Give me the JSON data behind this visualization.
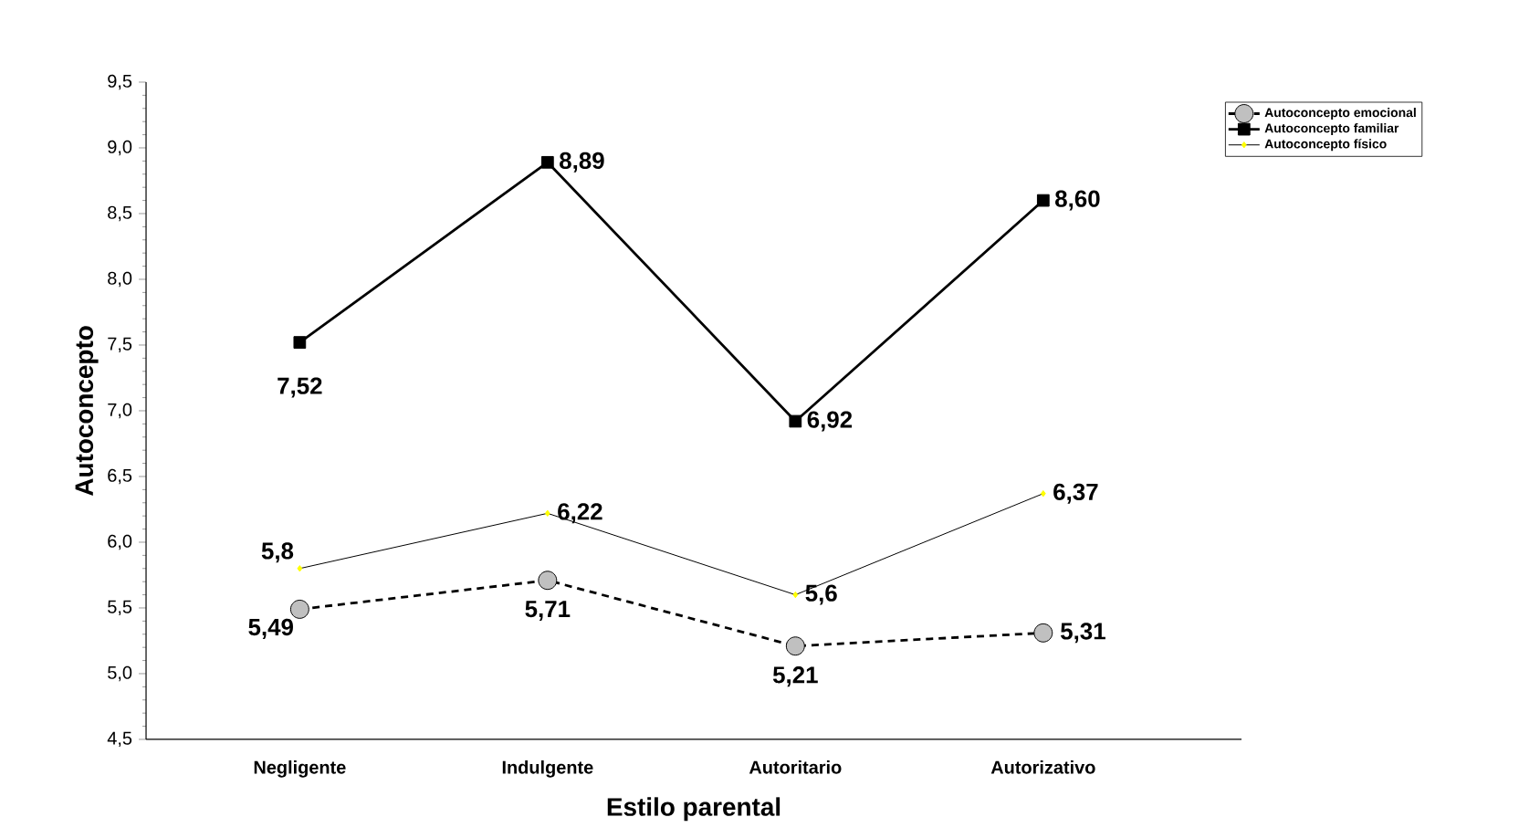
{
  "chart_data": {
    "type": "line",
    "xlabel": "Estilo parental",
    "ylabel": "Autoconcepto",
    "categories": [
      "Negligente",
      "Indulgente",
      "Autoritario",
      "Autorizativo"
    ],
    "ylim": [
      4.5,
      9.5
    ],
    "yticks": [
      {
        "value": 4.5,
        "label": "4,5"
      },
      {
        "value": 5.0,
        "label": "5,0"
      },
      {
        "value": 5.5,
        "label": "5,5"
      },
      {
        "value": 6.0,
        "label": "6,0"
      },
      {
        "value": 6.5,
        "label": "6,5"
      },
      {
        "value": 7.0,
        "label": "7,0"
      },
      {
        "value": 7.5,
        "label": "7,5"
      },
      {
        "value": 8.0,
        "label": "8,0"
      },
      {
        "value": 8.5,
        "label": "8,5"
      },
      {
        "value": 9.0,
        "label": "9,0"
      },
      {
        "value": 9.5,
        "label": "9,5"
      }
    ],
    "grid": false,
    "legend": "top right",
    "series": [
      {
        "name": "Autoconcepto emocional",
        "color": "#c0c0c0",
        "marker": "circle",
        "line_style": "dashed",
        "values": [
          5.49,
          5.71,
          5.21,
          5.31
        ],
        "value_labels": [
          "5,49",
          "5,71",
          "5,21",
          "5,31"
        ]
      },
      {
        "name": "Autoconcepto familiar",
        "color": "#000000",
        "marker": "square",
        "line_style": "solid",
        "values": [
          7.52,
          8.89,
          6.92,
          8.6
        ],
        "value_labels": [
          "7,52",
          "8,89",
          "6,92",
          "8,60"
        ]
      },
      {
        "name": "Autoconcepto físico",
        "color": "#ffff00",
        "marker": "diamond",
        "line_style": "solid",
        "values": [
          5.8,
          6.22,
          5.6,
          6.37
        ],
        "value_labels": [
          "5,8",
          "6,22",
          "5,6",
          "6,37"
        ]
      }
    ]
  }
}
